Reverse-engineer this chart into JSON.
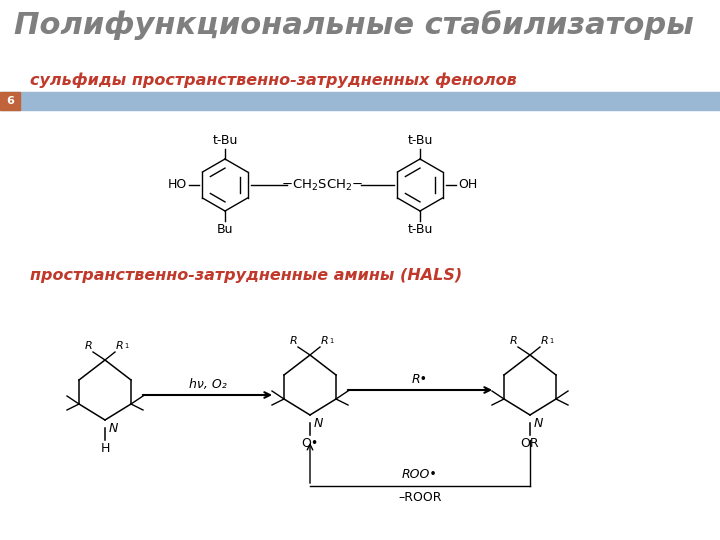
{
  "title": "Полифункциональные стабилизаторы",
  "title_color": "#7f7f7f",
  "title_fontsize": 22,
  "subtitle1": "сульфиды пространственно-затрудненных фенолов",
  "subtitle1_color": "#c0392b",
  "subtitle1_fontsize": 11.5,
  "subtitle2": "пространственно-затрудненные амины (HALS)",
  "subtitle2_color": "#c0392b",
  "subtitle2_fontsize": 11.5,
  "banner_color": "#9ab7d3",
  "banner_number": "6",
  "num_box_color": "#c0623a",
  "bg_color": "#ffffff"
}
